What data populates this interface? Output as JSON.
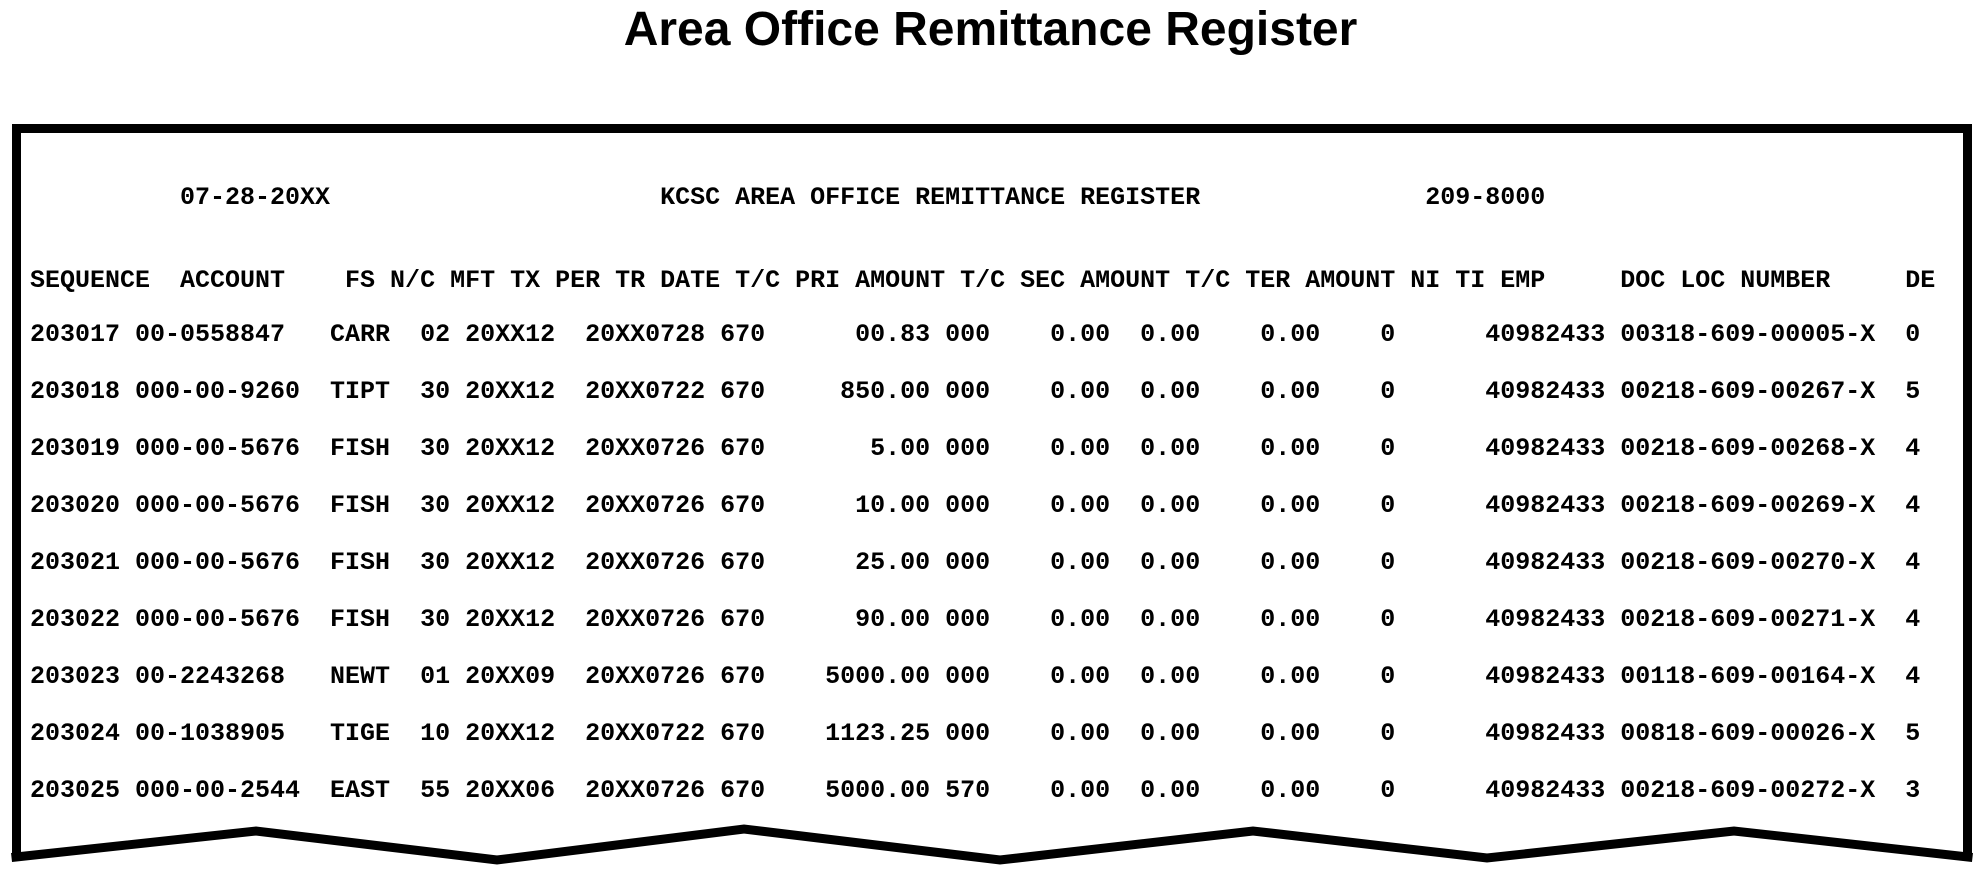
{
  "title": "Area Office Remittance Register",
  "report": {
    "header": {
      "date": "07-28-20XX",
      "heading": "KCSC AREA OFFICE REMITTANCE REGISTER",
      "report_number": "209-8000"
    },
    "column_header_labels": [
      "SEQUENCE",
      "ACCOUNT",
      "FS",
      "N/C",
      "MFT",
      "TX",
      "PER",
      "TR",
      "DATE",
      "T/C",
      "PRI",
      "AMOUNT",
      "T/C",
      "SEC",
      "AMOUNT",
      "T/C",
      "TER",
      "AMOUNT",
      "NI",
      "TI",
      "EMP",
      "DOC",
      "LOC",
      "NUMBER",
      "DE"
    ],
    "rows": [
      {
        "sequence": "203017",
        "account": "00-0558847",
        "name_control": "CARR",
        "mft": "02",
        "tax_period": "20XX12",
        "transaction_date": "20XX0728",
        "tc_1": "670",
        "pri_amount": "00.83",
        "tc_2": "000",
        "sec_amount": "0.00",
        "tc_3": "0.00",
        "ter_amount": "0.00",
        "ni": "0",
        "emp": "40982433",
        "doc_loc_number": "00318-609-00005-X",
        "de": "0"
      },
      {
        "sequence": "203018",
        "account": "000-00-9260",
        "name_control": "TIPT",
        "mft": "30",
        "tax_period": "20XX12",
        "transaction_date": "20XX0722",
        "tc_1": "670",
        "pri_amount": "850.00",
        "tc_2": "000",
        "sec_amount": "0.00",
        "tc_3": "0.00",
        "ter_amount": "0.00",
        "ni": "0",
        "emp": "40982433",
        "doc_loc_number": "00218-609-00267-X",
        "de": "5"
      },
      {
        "sequence": "203019",
        "account": "000-00-5676",
        "name_control": "FISH",
        "mft": "30",
        "tax_period": "20XX12",
        "transaction_date": "20XX0726",
        "tc_1": "670",
        "pri_amount": "5.00",
        "tc_2": "000",
        "sec_amount": "0.00",
        "tc_3": "0.00",
        "ter_amount": "0.00",
        "ni": "0",
        "emp": "40982433",
        "doc_loc_number": "00218-609-00268-X",
        "de": "4"
      },
      {
        "sequence": "203020",
        "account": "000-00-5676",
        "name_control": "FISH",
        "mft": "30",
        "tax_period": "20XX12",
        "transaction_date": "20XX0726",
        "tc_1": "670",
        "pri_amount": "10.00",
        "tc_2": "000",
        "sec_amount": "0.00",
        "tc_3": "0.00",
        "ter_amount": "0.00",
        "ni": "0",
        "emp": "40982433",
        "doc_loc_number": "00218-609-00269-X",
        "de": "4"
      },
      {
        "sequence": "203021",
        "account": "000-00-5676",
        "name_control": "FISH",
        "mft": "30",
        "tax_period": "20XX12",
        "transaction_date": "20XX0726",
        "tc_1": "670",
        "pri_amount": "25.00",
        "tc_2": "000",
        "sec_amount": "0.00",
        "tc_3": "0.00",
        "ter_amount": "0.00",
        "ni": "0",
        "emp": "40982433",
        "doc_loc_number": "00218-609-00270-X",
        "de": "4"
      },
      {
        "sequence": "203022",
        "account": "000-00-5676",
        "name_control": "FISH",
        "mft": "30",
        "tax_period": "20XX12",
        "transaction_date": "20XX0726",
        "tc_1": "670",
        "pri_amount": "90.00",
        "tc_2": "000",
        "sec_amount": "0.00",
        "tc_3": "0.00",
        "ter_amount": "0.00",
        "ni": "0",
        "emp": "40982433",
        "doc_loc_number": "00218-609-00271-X",
        "de": "4"
      },
      {
        "sequence": "203023",
        "account": "00-2243268",
        "name_control": "NEWT",
        "mft": "01",
        "tax_period": "20XX09",
        "transaction_date": "20XX0726",
        "tc_1": "670",
        "pri_amount": "5000.00",
        "tc_2": "000",
        "sec_amount": "0.00",
        "tc_3": "0.00",
        "ter_amount": "0.00",
        "ni": "0",
        "emp": "40982433",
        "doc_loc_number": "00118-609-00164-X",
        "de": "4"
      },
      {
        "sequence": "203024",
        "account": "00-1038905",
        "name_control": "TIGE",
        "mft": "10",
        "tax_period": "20XX12",
        "transaction_date": "20XX0722",
        "tc_1": "670",
        "pri_amount": "1123.25",
        "tc_2": "000",
        "sec_amount": "0.00",
        "tc_3": "0.00",
        "ter_amount": "0.00",
        "ni": "0",
        "emp": "40982433",
        "doc_loc_number": "00818-609-00026-X",
        "de": "5"
      },
      {
        "sequence": "203025",
        "account": "000-00-2544",
        "name_control": "EAST",
        "mft": "55",
        "tax_period": "20XX06",
        "transaction_date": "20XX0726",
        "tc_1": "670",
        "pri_amount": "5000.00",
        "tc_2": "570",
        "sec_amount": "0.00",
        "tc_3": "0.00",
        "ter_amount": "0.00",
        "ni": "0",
        "emp": "40982433",
        "doc_loc_number": "00218-609-00272-X",
        "de": "3"
      }
    ]
  },
  "colors": {
    "ink": "#000000",
    "paper": "#ffffff"
  }
}
